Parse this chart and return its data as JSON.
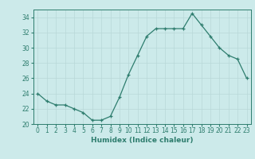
{
  "x": [
    0,
    1,
    2,
    3,
    4,
    5,
    6,
    7,
    8,
    9,
    10,
    11,
    12,
    13,
    14,
    15,
    16,
    17,
    18,
    19,
    20,
    21,
    22,
    23
  ],
  "y": [
    24.0,
    23.0,
    22.5,
    22.5,
    22.0,
    21.5,
    20.5,
    20.5,
    21.0,
    23.5,
    26.5,
    29.0,
    31.5,
    32.5,
    32.5,
    32.5,
    32.5,
    34.5,
    33.0,
    31.5,
    30.0,
    29.0,
    28.5,
    26.0
  ],
  "line_color": "#2e7d6e",
  "marker": "+",
  "bg_color": "#cceaea",
  "grid_color": "#b8d8d8",
  "xlabel": "Humidex (Indice chaleur)",
  "ylim": [
    20,
    35
  ],
  "xlim": [
    -0.5,
    23.5
  ],
  "yticks": [
    20,
    22,
    24,
    26,
    28,
    30,
    32,
    34
  ],
  "xticks": [
    0,
    1,
    2,
    3,
    4,
    5,
    6,
    7,
    8,
    9,
    10,
    11,
    12,
    13,
    14,
    15,
    16,
    17,
    18,
    19,
    20,
    21,
    22,
    23
  ],
  "label_fontsize": 6.5,
  "tick_fontsize": 5.5
}
